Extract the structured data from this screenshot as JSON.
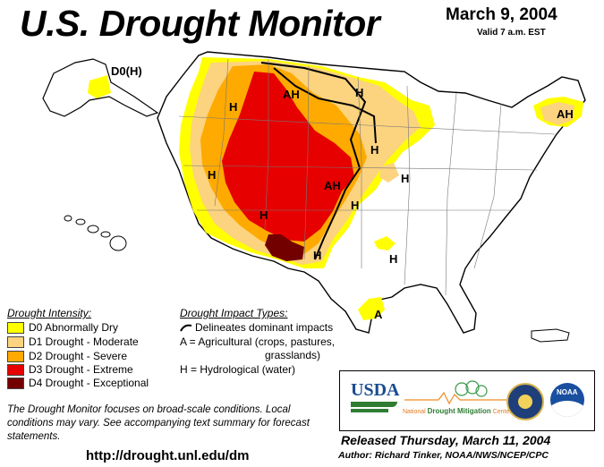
{
  "header": {
    "title": "U.S. Drought Monitor",
    "date": "March 9, 2004",
    "valid": "Valid 7 a.m. EST"
  },
  "map_labels": {
    "alaska": "D0(H)",
    "h": "H",
    "ah": "AH",
    "a": "A"
  },
  "legend": {
    "intensity_title": "Drought Intensity:",
    "items": [
      {
        "label": "D0 Abnormally Dry",
        "color": "#ffff00"
      },
      {
        "label": "D1 Drought - Moderate",
        "color": "#fcd37f"
      },
      {
        "label": "D2 Drought - Severe",
        "color": "#ffaa00"
      },
      {
        "label": "D3 Drought - Extreme",
        "color": "#e60000"
      },
      {
        "label": "D4 Drought - Exceptional",
        "color": "#730000"
      }
    ],
    "impact_title": "Drought Impact Types:",
    "impact_line1": "Delineates dominant impacts",
    "impact_line2": "A = Agricultural (crops, pastures,",
    "impact_line3": "grasslands)",
    "impact_line4": "H = Hydrological (water)"
  },
  "note": "The Drought Monitor focuses on broad-scale conditions. Local conditions may vary.  See accompanying text summary for forecast statements.",
  "url": "http://drought.unl.edu/dm",
  "logos": {
    "usda": "USDA",
    "ndmc_prefix": "National",
    "ndmc_main": "Drought Mitigation",
    "ndmc_suffix": "Center",
    "noaa": "NOAA"
  },
  "released": "Released Thursday, March 11, 2004",
  "author": "Author: Richard Tinker, NOAA/NWS/NCEP/CPC"
}
